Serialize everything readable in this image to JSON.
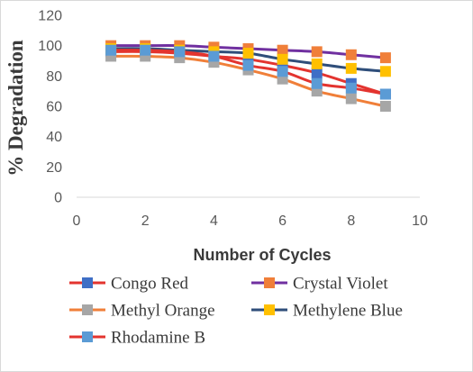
{
  "chart_data": {
    "type": "line",
    "xlabel": "Number of Cycles",
    "ylabel": "% Degradation",
    "xlim": [
      0,
      10
    ],
    "ylim": [
      0,
      120
    ],
    "xticks": [
      "0",
      "2",
      "4",
      "6",
      "8",
      "10"
    ],
    "yticks": [
      "0",
      "20",
      "40",
      "60",
      "80",
      "100",
      "120"
    ],
    "grid": false,
    "legend_position": "bottom",
    "series": [
      {
        "name": "Congo Red",
        "line_color": "#e3342f",
        "marker_color": "#3f6fc6",
        "x": [
          1,
          2,
          3,
          4,
          5,
          6,
          7,
          8,
          9
        ],
        "y": [
          96,
          96,
          95,
          93,
          91,
          87,
          82,
          75,
          68
        ]
      },
      {
        "name": "Crystal Violet",
        "line_color": "#7030a0",
        "marker_color": "#f07f39",
        "x": [
          1,
          2,
          3,
          4,
          5,
          6,
          7,
          8,
          9
        ],
        "y": [
          100,
          100,
          100,
          99,
          98,
          97,
          96,
          94,
          92
        ]
      },
      {
        "name": "Methyl Orange",
        "line_color": "#f07f39",
        "marker_color": "#a6a6a6",
        "x": [
          1,
          2,
          3,
          4,
          5,
          6,
          7,
          8,
          9
        ],
        "y": [
          93,
          93,
          92,
          89,
          84,
          78,
          70,
          65,
          60
        ]
      },
      {
        "name": "Methylene Blue",
        "line_color": "#2f4e7a",
        "marker_color": "#ffc000",
        "x": [
          1,
          2,
          3,
          4,
          5,
          6,
          7,
          8,
          9
        ],
        "y": [
          98,
          98,
          97,
          96,
          95,
          91,
          88,
          85,
          83
        ]
      },
      {
        "name": "Rhodamine B",
        "line_color": "#e3342f",
        "marker_color": "#5b9bd5",
        "x": [
          1,
          2,
          3,
          4,
          5,
          6,
          7,
          8,
          9
        ],
        "y": [
          97,
          97,
          96,
          93,
          87,
          83,
          75,
          72,
          68
        ]
      }
    ]
  }
}
